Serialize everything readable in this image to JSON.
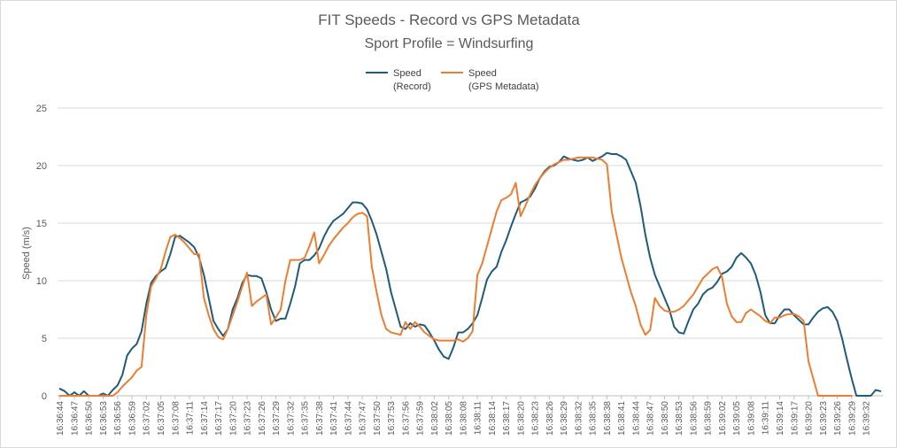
{
  "chart_data": {
    "type": "line",
    "title": "FIT Speeds - Record vs GPS Metadata",
    "subtitle": "Sport Profile = Windsurfing",
    "ylabel": "Speed (m/s)",
    "xlabel": "",
    "ylim": [
      0,
      25
    ],
    "yticks": [
      0,
      5,
      10,
      15,
      20,
      25
    ],
    "grid": "horizontal",
    "legend": "top-center",
    "x_start": "16:36:44",
    "x_tick_labels": [
      "16:36:44",
      "16:36:47",
      "16:36:50",
      "16:36:53",
      "16:36:56",
      "16:36:59",
      "16:37:02",
      "16:37:05",
      "16:37:08",
      "16:37:11",
      "16:37:14",
      "16:37:17",
      "16:37:20",
      "16:37:23",
      "16:37:26",
      "16:37:29",
      "16:37:32",
      "16:37:35",
      "16:37:38",
      "16:37:41",
      "16:37:44",
      "16:37:47",
      "16:37:50",
      "16:37:53",
      "16:37:56",
      "16:37:59",
      "16:38:02",
      "16:38:05",
      "16:38:08",
      "16:38:11",
      "16:38:14",
      "16:38:17",
      "16:38:20",
      "16:38:23",
      "16:38:26",
      "16:38:29",
      "16:38:32",
      "16:38:35",
      "16:38:38",
      "16:38:41",
      "16:38:44",
      "16:38:47",
      "16:38:50",
      "16:38:53",
      "16:38:56",
      "16:38:59",
      "16:39:02",
      "16:39:05",
      "16:39:08",
      "16:39:11",
      "16:39:14",
      "16:39:17",
      "16:39:20",
      "16:39:23",
      "16:39:26",
      "16:39:29",
      "16:39:32"
    ],
    "series": [
      {
        "name": "Speed (Record)",
        "legend_lines": [
          "Speed",
          "(Record)"
        ],
        "color": "#1f5c7a",
        "values": [
          0.6,
          0.4,
          0,
          0.3,
          0,
          0.4,
          0,
          0,
          0,
          0.2,
          0,
          0.5,
          0.9,
          1.8,
          3.5,
          4.1,
          4.5,
          5.6,
          8.0,
          9.8,
          10.4,
          10.8,
          11.1,
          12.3,
          13.8,
          13.9,
          13.6,
          13.3,
          12.9,
          12.0,
          10.5,
          8.5,
          6.5,
          5.8,
          5.2,
          5.8,
          7.5,
          8.5,
          9.8,
          10.5,
          10.4,
          10.4,
          10.2,
          9.0,
          7.5,
          6.5,
          6.7,
          6.7,
          8.0,
          9.5,
          11.5,
          11.8,
          11.8,
          12.2,
          12.8,
          13.8,
          14.6,
          15.2,
          15.5,
          15.8,
          16.3,
          16.8,
          16.8,
          16.7,
          16.2,
          15.2,
          14.0,
          12.5,
          11.0,
          9.0,
          7.5,
          6.0,
          5.8,
          6.3,
          6.0,
          6.2,
          6.1,
          5.5,
          4.8,
          4.0,
          3.4,
          3.2,
          4.2,
          5.5,
          5.5,
          5.8,
          6.3,
          7.0,
          8.5,
          10.1,
          10.8,
          11.2,
          12.5,
          13.5,
          14.7,
          15.8,
          16.8,
          17.0,
          17.3,
          18.0,
          18.9,
          19.5,
          19.9,
          20.0,
          20.3,
          20.8,
          20.6,
          20.5,
          20.4,
          20.5,
          20.7,
          20.4,
          20.6,
          20.8,
          21.1,
          21.0,
          21.0,
          20.8,
          20.5,
          19.5,
          18.5,
          16.5,
          14.0,
          12.0,
          10.5,
          9.5,
          8.5,
          7.5,
          6.0,
          5.5,
          5.4,
          6.5,
          7.5,
          8.0,
          8.8,
          9.2,
          9.4,
          9.9,
          10.6,
          10.8,
          11.2,
          12.0,
          12.4,
          12.0,
          11.5,
          10.5,
          9.0,
          7.0,
          6.3,
          6.3,
          7.0,
          7.5,
          7.5,
          7.0,
          6.6,
          6.2,
          6.2,
          6.8,
          7.3,
          7.6,
          7.7,
          7.3,
          6.5,
          5.0,
          3.2,
          1.5,
          0,
          0,
          0,
          0,
          0.5,
          0.4
        ]
      },
      {
        "name": "Speed (GPS Metadata)",
        "legend_lines": [
          "Speed",
          "(GPS Metadata)"
        ],
        "color": "#ed7d31",
        "values": [
          0,
          0,
          0,
          0,
          0,
          0,
          0,
          0,
          0,
          0,
          0,
          0,
          0.3,
          0.8,
          1.2,
          1.6,
          2.2,
          2.5,
          7.0,
          9.5,
          10.2,
          11.0,
          12.5,
          13.8,
          14.0,
          13.7,
          13.3,
          12.8,
          12.3,
          12.3,
          8.5,
          7.0,
          5.8,
          5.1,
          4.9,
          5.8,
          7.0,
          8.2,
          9.5,
          10.7,
          7.8,
          8.2,
          8.5,
          8.8,
          6.2,
          6.8,
          7.5,
          10.0,
          11.8,
          11.8,
          11.8,
          12.0,
          13.0,
          14.2,
          11.5,
          12.2,
          13.0,
          13.6,
          14.1,
          14.6,
          15.0,
          15.5,
          15.8,
          15.9,
          15.6,
          11.2,
          9.0,
          7.0,
          5.8,
          5.5,
          5.4,
          5.3,
          6.4,
          5.8,
          6.4,
          6.0,
          5.5,
          5.2,
          4.9,
          4.8,
          4.8,
          4.8,
          4.8,
          4.9,
          4.7,
          5.0,
          5.6,
          10.5,
          11.5,
          13.0,
          14.5,
          16.0,
          17.0,
          17.2,
          17.5,
          18.5,
          15.6,
          16.5,
          17.5,
          18.3,
          18.9,
          19.4,
          19.8,
          20.1,
          20.3,
          20.5,
          20.5,
          20.6,
          20.7,
          20.7,
          20.7,
          20.7,
          20.6,
          20.5,
          20.1,
          16.0,
          14.0,
          12.0,
          10.5,
          9.0,
          7.8,
          6.2,
          5.3,
          5.7,
          8.5,
          7.8,
          7.4,
          7.3,
          7.3,
          7.5,
          7.8,
          8.3,
          8.8,
          9.5,
          10.2,
          10.6,
          11.0,
          11.2,
          10.3,
          8.0,
          6.9,
          6.4,
          6.4,
          7.2,
          7.5,
          7.2,
          6.9,
          6.5,
          6.3,
          6.8,
          6.8,
          7.0,
          7.1,
          7.1,
          6.9,
          6.5,
          3.0,
          1.5,
          0,
          0,
          0,
          0,
          0,
          0,
          0,
          0
        ]
      }
    ]
  }
}
